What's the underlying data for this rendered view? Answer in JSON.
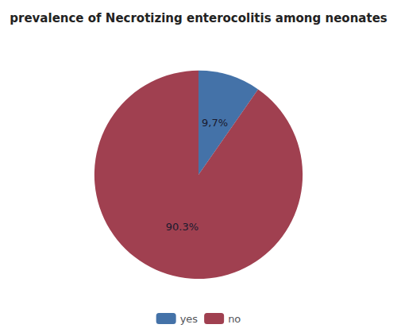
{
  "chart_data": {
    "type": "pie",
    "title": "prevalence of Necrotizing enterocolitis among neonates",
    "categories": [
      "yes",
      "no"
    ],
    "values": [
      9.7,
      90.3
    ],
    "value_labels": [
      "9,7%",
      "90.3%"
    ],
    "colors": [
      "#4472a8",
      "#a04050"
    ],
    "data_labels": true,
    "legend": "bottom"
  }
}
